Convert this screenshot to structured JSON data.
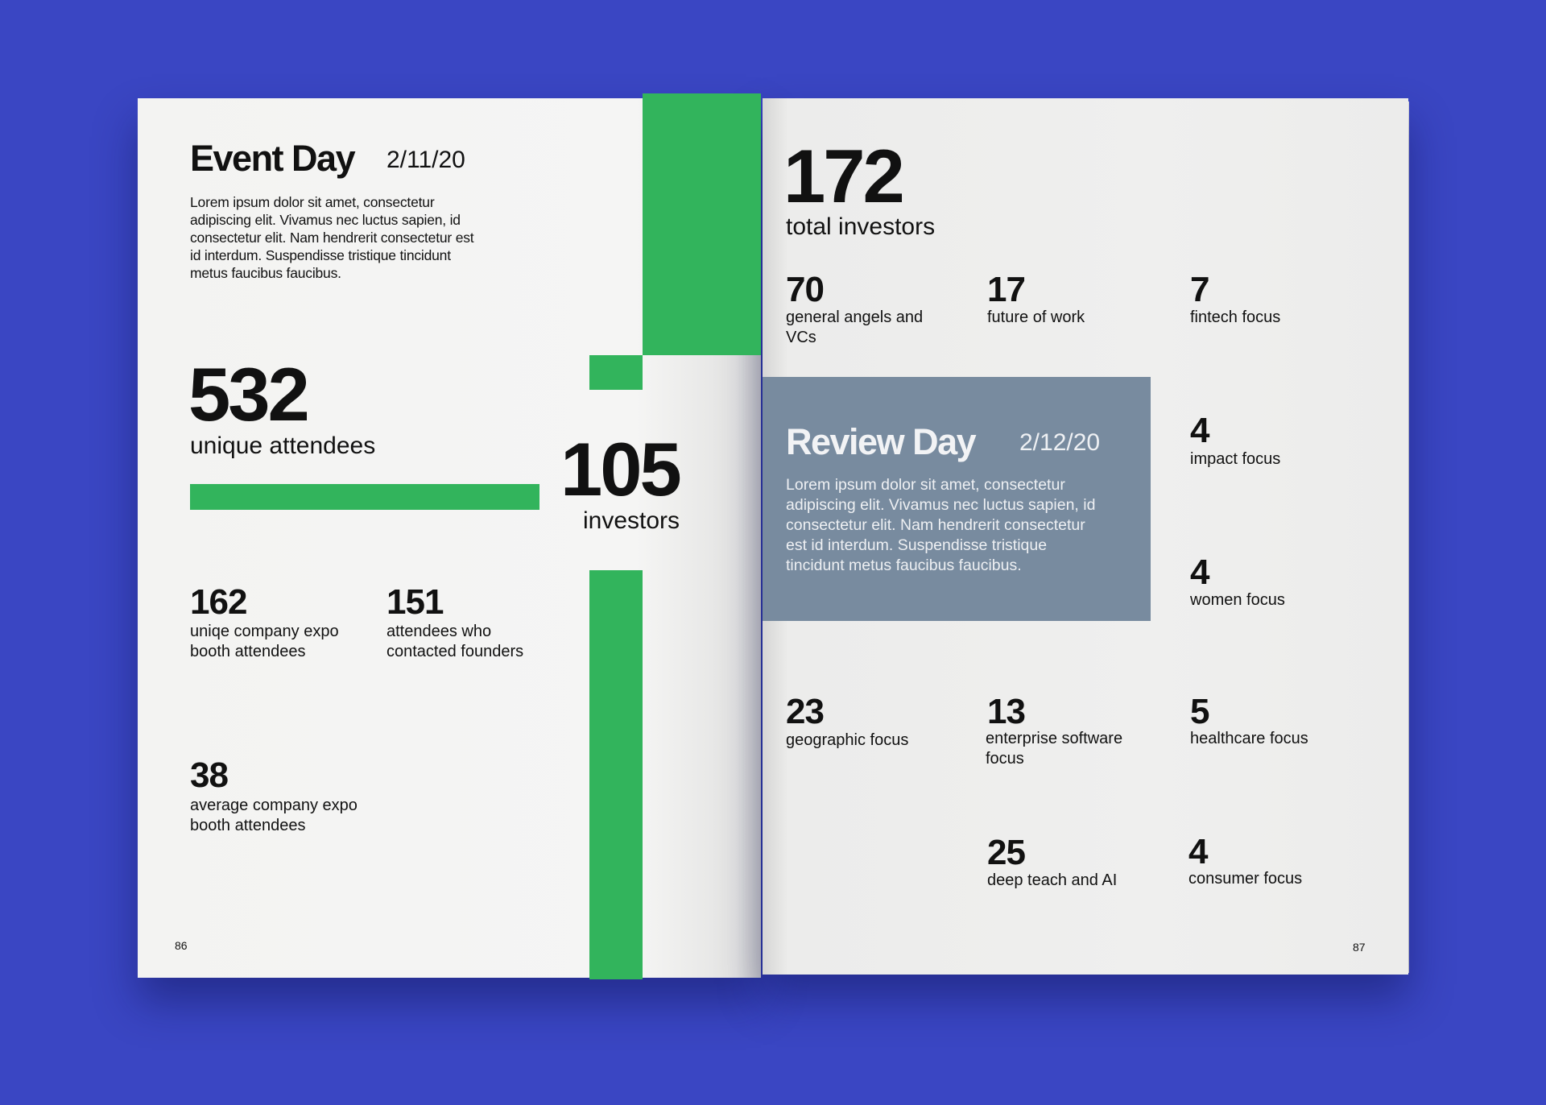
{
  "colors": {
    "background": "#3a46c3",
    "accent_green": "#32b45c",
    "review_box": "#788b9f"
  },
  "left_page": {
    "title": "Event Day",
    "date": "2/11/20",
    "body": "Lorem ipsum dolor sit amet, consectetur adipiscing elit. Vivamus nec luctus sapien, id consectetur elit. Nam hendrerit consectetur est id interdum. Suspendisse tristique tincidunt metus faucibus faucibus.",
    "attendees": {
      "value": "532",
      "label": "unique attendees"
    },
    "investors": {
      "value": "105",
      "label": "investors"
    },
    "stats": [
      {
        "value": "162",
        "label": "uniqe company expo booth attendees"
      },
      {
        "value": "151",
        "label": "attendees who contacted founders"
      },
      {
        "value": "38",
        "label": "average company expo booth attendees"
      }
    ],
    "page_number": "86"
  },
  "right_page": {
    "total": {
      "value": "172",
      "label": "total investors"
    },
    "review": {
      "title": "Review Day",
      "date": "2/12/20",
      "body": "Lorem ipsum dolor sit amet, consectetur adipiscing elit. Vivamus nec luctus sapien, id consectetur elit. Nam hendrerit consectetur est id interdum. Suspendisse tristique tincidunt metus faucibus faucibus."
    },
    "stats": [
      {
        "value": "70",
        "label": "general angels and VCs"
      },
      {
        "value": "17",
        "label": "future of work"
      },
      {
        "value": "7",
        "label": "fintech focus"
      },
      {
        "value": "4",
        "label": "impact focus"
      },
      {
        "value": "4",
        "label": "women focus"
      },
      {
        "value": "23",
        "label": "geographic focus"
      },
      {
        "value": "13",
        "label": "enterprise software focus"
      },
      {
        "value": "5",
        "label": "healthcare focus"
      },
      {
        "value": "25",
        "label": "deep teach and AI"
      },
      {
        "value": "4",
        "label": "consumer focus"
      }
    ],
    "page_number": "87"
  }
}
